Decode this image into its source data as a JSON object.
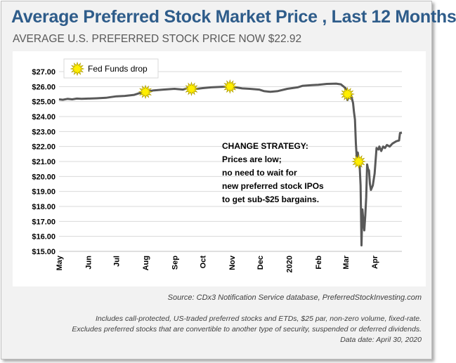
{
  "title": "Average Preferred Stock Market Price , Last 12 Months",
  "subtitle": "AVERAGE U.S. PREFERRED STOCK PRICE NOW $22.92",
  "annotation": {
    "lines": [
      "CHANGE STRATEGY:",
      "Prices are low;",
      "no need to wait for",
      "new preferred stock IPOs",
      "to get sub-$25 bargains."
    ]
  },
  "footer": {
    "source": "Source: CDx3 Notification Service database, PreferredStockInvesting.com",
    "note1": "Includes call-protected, US-traded preferred stocks and ETDs, $25 par, non-zero volume, fixed-rate.",
    "note2": "Excludes preferred stocks that are convertible to another type of security, suspended or deferred dividends.",
    "note3": "Data date: April 30, 2020"
  },
  "colors": {
    "title": "#2e5c8a",
    "line": "#595959",
    "marker": "#ffee00",
    "marker_edge": "#b3a000"
  },
  "chart_data": {
    "type": "line",
    "title": "",
    "xlabel": "",
    "ylabel": "",
    "ylim": [
      15,
      27
    ],
    "yticks": [
      15,
      16,
      17,
      18,
      19,
      20,
      21,
      22,
      23,
      24,
      25,
      26,
      27
    ],
    "ytick_labels": [
      "$15.00",
      "$16.00",
      "$17.00",
      "$18.00",
      "$19.00",
      "$20.00",
      "$21.00",
      "$22.00",
      "$23.00",
      "$24.00",
      "$25.00",
      "$26.00",
      "$27.00"
    ],
    "xrange": [
      "2019-05-01",
      "2020-04-30"
    ],
    "xticks": [
      {
        "label": "May",
        "date": "2019-05-01"
      },
      {
        "label": "Jun",
        "date": "2019-06-01"
      },
      {
        "label": "Jul",
        "date": "2019-07-01"
      },
      {
        "label": "Aug",
        "date": "2019-08-01"
      },
      {
        "label": "Sep",
        "date": "2019-09-01"
      },
      {
        "label": "Oct",
        "date": "2019-10-01"
      },
      {
        "label": "Nov",
        "date": "2019-11-01"
      },
      {
        "label": "Dec",
        "date": "2019-12-01"
      },
      {
        "label": "2020",
        "date": "2020-01-01"
      },
      {
        "label": "Feb",
        "date": "2020-02-01"
      },
      {
        "label": "Mar",
        "date": "2020-03-01"
      },
      {
        "label": "Apr",
        "date": "2020-04-01"
      }
    ],
    "grid": true,
    "legend": {
      "position": "top-left",
      "entries": [
        "Fed Funds drop"
      ]
    },
    "series": [
      {
        "points": [
          [
            "2019-05-01",
            25.15
          ],
          [
            "2019-05-05",
            25.12
          ],
          [
            "2019-05-10",
            25.18
          ],
          [
            "2019-05-15",
            25.15
          ],
          [
            "2019-05-20",
            25.2
          ],
          [
            "2019-05-25",
            25.18
          ],
          [
            "2019-06-01",
            25.2
          ],
          [
            "2019-06-10",
            25.22
          ],
          [
            "2019-06-20",
            25.25
          ],
          [
            "2019-06-25",
            25.3
          ],
          [
            "2019-07-01",
            25.35
          ],
          [
            "2019-07-10",
            25.38
          ],
          [
            "2019-07-20",
            25.45
          ],
          [
            "2019-07-25",
            25.55
          ],
          [
            "2019-07-31",
            25.65
          ],
          [
            "2019-08-10",
            25.75
          ],
          [
            "2019-08-20",
            25.8
          ],
          [
            "2019-09-01",
            25.85
          ],
          [
            "2019-09-10",
            25.8
          ],
          [
            "2019-09-15",
            25.9
          ],
          [
            "2019-09-25",
            25.85
          ],
          [
            "2019-10-01",
            25.9
          ],
          [
            "2019-10-10",
            25.95
          ],
          [
            "2019-10-20",
            25.98
          ],
          [
            "2019-10-30",
            26.0
          ],
          [
            "2019-11-05",
            25.95
          ],
          [
            "2019-11-12",
            25.88
          ],
          [
            "2019-11-20",
            25.85
          ],
          [
            "2019-11-30",
            25.8
          ],
          [
            "2019-12-05",
            25.7
          ],
          [
            "2019-12-12",
            25.65
          ],
          [
            "2019-12-20",
            25.7
          ],
          [
            "2019-12-30",
            25.85
          ],
          [
            "2020-01-10",
            25.95
          ],
          [
            "2020-01-15",
            26.05
          ],
          [
            "2020-01-25",
            26.1
          ],
          [
            "2020-02-01",
            26.12
          ],
          [
            "2020-02-10",
            26.18
          ],
          [
            "2020-02-20",
            26.2
          ],
          [
            "2020-02-25",
            26.15
          ],
          [
            "2020-03-01",
            25.9
          ],
          [
            "2020-03-02",
            25.55
          ],
          [
            "2020-03-03",
            25.1
          ],
          [
            "2020-03-04",
            25.3
          ],
          [
            "2020-03-05",
            25.45
          ],
          [
            "2020-03-07",
            25.4
          ],
          [
            "2020-03-09",
            24.9
          ],
          [
            "2020-03-10",
            24.3
          ],
          [
            "2020-03-11",
            23.8
          ],
          [
            "2020-03-12",
            22.2
          ],
          [
            "2020-03-13",
            21.2
          ],
          [
            "2020-03-14",
            21.6
          ],
          [
            "2020-03-16",
            20.8
          ],
          [
            "2020-03-17",
            19.4
          ],
          [
            "2020-03-18",
            15.4
          ],
          [
            "2020-03-19",
            17.8
          ],
          [
            "2020-03-20",
            17.0
          ],
          [
            "2020-03-21",
            16.4
          ],
          [
            "2020-03-22",
            17.4
          ],
          [
            "2020-03-23",
            18.6
          ],
          [
            "2020-03-24",
            20.8
          ],
          [
            "2020-03-25",
            20.5
          ],
          [
            "2020-03-26",
            20.4
          ],
          [
            "2020-03-27",
            19.5
          ],
          [
            "2020-03-28",
            19.1
          ],
          [
            "2020-03-30",
            19.4
          ],
          [
            "2020-04-01",
            20.2
          ],
          [
            "2020-04-03",
            21.9
          ],
          [
            "2020-04-05",
            21.8
          ],
          [
            "2020-04-06",
            22.0
          ],
          [
            "2020-04-08",
            21.7
          ],
          [
            "2020-04-10",
            22.0
          ],
          [
            "2020-04-12",
            21.9
          ],
          [
            "2020-04-14",
            22.1
          ],
          [
            "2020-04-17",
            22.0
          ],
          [
            "2020-04-20",
            22.2
          ],
          [
            "2020-04-24",
            22.35
          ],
          [
            "2020-04-27",
            22.4
          ],
          [
            "2020-04-28",
            22.9
          ],
          [
            "2020-04-30",
            22.92
          ]
        ]
      }
    ],
    "markers": {
      "label": "Fed Funds drop",
      "points": [
        [
          "2019-08-01",
          25.65
        ],
        [
          "2019-09-19",
          25.85
        ],
        [
          "2019-10-30",
          26.0
        ],
        [
          "2020-03-03",
          25.5
        ],
        [
          "2020-03-15",
          21.0
        ]
      ]
    }
  }
}
